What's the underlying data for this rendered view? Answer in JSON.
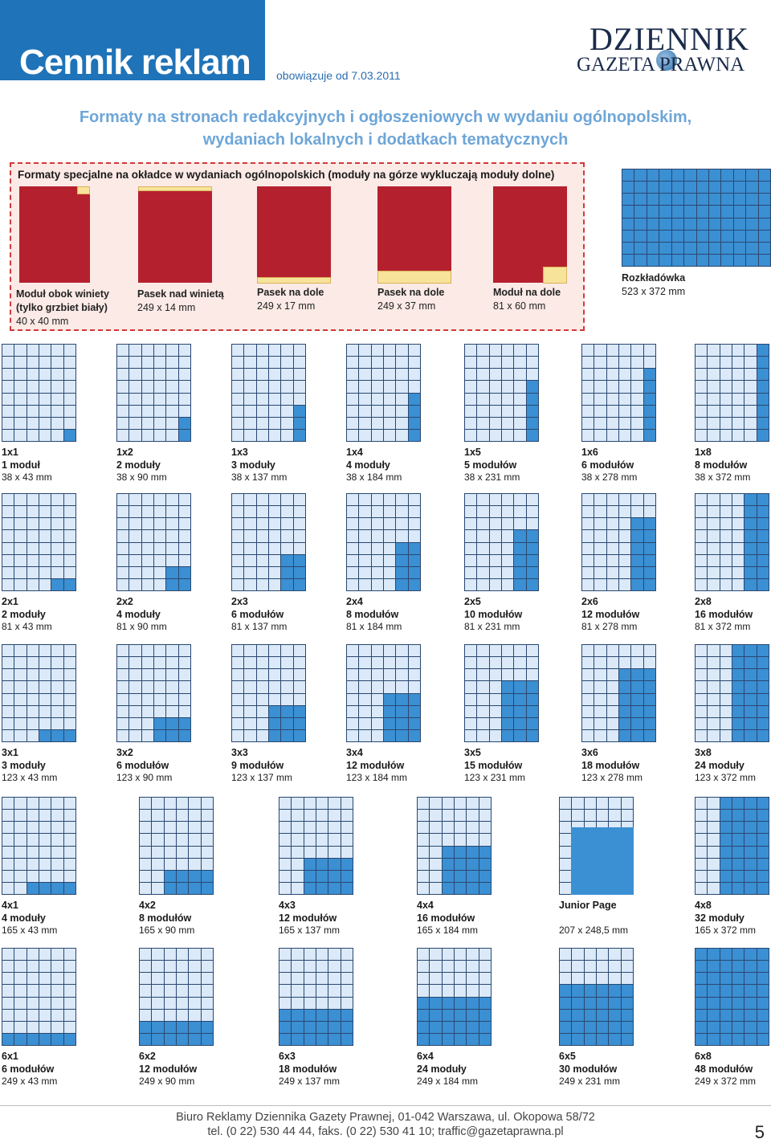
{
  "header": {
    "title": "Cennik reklam",
    "valid_from": "obowiązuje od 7.03.2011",
    "logo_line1": "DZIENNIK",
    "logo_line2": "GAZETA PRAWNA"
  },
  "subtitle": {
    "line1": "Formaty na stronach redakcyjnych i ogłoszeniowych w wydaniu ogólnopolskim,",
    "line2": "wydaniach lokalnych i dodatkach tematycznych"
  },
  "special": {
    "label": "Formaty specjalne na okładce w wydaniach ogólnopolskich (moduły na górze wykluczają moduły dolne)",
    "items": [
      {
        "name": "Moduł obok winiety",
        "name2": "(tylko grzbiet biały)",
        "dims": "40 x 40 mm"
      },
      {
        "name": "Pasek nad winietą",
        "name2": "",
        "dims": "249 x 14 mm"
      },
      {
        "name": "Pasek na dole",
        "name2": "",
        "dims": "249 x 17 mm"
      },
      {
        "name": "Pasek na dole",
        "name2": "",
        "dims": "249 x 37 mm"
      },
      {
        "name": "Moduł na dole",
        "name2": "",
        "dims": "81 x 60 mm"
      }
    ],
    "spread": {
      "name": "Rozkładówka",
      "dims": "523 x 372 mm"
    }
  },
  "colors": {
    "accent": "#1f73b8",
    "module_fill": "#3b8fd3",
    "module_empty": "#dbe9f8",
    "special_red": "#b5202e",
    "special_yellow": "#f7e39a"
  },
  "rows": [
    {
      "items": [
        {
          "code": "1x1",
          "count": "1 moduł",
          "dims": "38 x 43 mm",
          "w": 1,
          "h": 1
        },
        {
          "code": "1x2",
          "count": "2 moduły",
          "dims": "38 x 90 mm",
          "w": 1,
          "h": 2
        },
        {
          "code": "1x3",
          "count": "3 moduły",
          "dims": "38 x 137 mm",
          "w": 1,
          "h": 3
        },
        {
          "code": "1x4",
          "count": "4 moduły",
          "dims": "38 x 184 mm",
          "w": 1,
          "h": 4
        },
        {
          "code": "1x5",
          "count": "5 modułów",
          "dims": "38 x 231 mm",
          "w": 1,
          "h": 5
        },
        {
          "code": "1x6",
          "count": "6 modułów",
          "dims": "38 x 278 mm",
          "w": 1,
          "h": 6
        },
        {
          "code": "1x8",
          "count": "8 modułów",
          "dims": "38 x 372 mm",
          "w": 1,
          "h": 8
        }
      ]
    },
    {
      "items": [
        {
          "code": "2x1",
          "count": "2 moduły",
          "dims": "81 x 43 mm",
          "w": 2,
          "h": 1
        },
        {
          "code": "2x2",
          "count": "4 moduły",
          "dims": "81 x 90 mm",
          "w": 2,
          "h": 2
        },
        {
          "code": "2x3",
          "count": "6 modułów",
          "dims": "81 x 137 mm",
          "w": 2,
          "h": 3
        },
        {
          "code": "2x4",
          "count": "8 modułów",
          "dims": "81 x 184 mm",
          "w": 2,
          "h": 4
        },
        {
          "code": "2x5",
          "count": "10 modułów",
          "dims": "81 x 231 mm",
          "w": 2,
          "h": 5
        },
        {
          "code": "2x6",
          "count": "12 modułów",
          "dims": "81 x 278 mm",
          "w": 2,
          "h": 6
        },
        {
          "code": "2x8",
          "count": "16 modułów",
          "dims": "81 x 372 mm",
          "w": 2,
          "h": 8
        }
      ]
    },
    {
      "items": [
        {
          "code": "3x1",
          "count": "3 moduły",
          "dims": "123 x 43 mm",
          "w": 3,
          "h": 1
        },
        {
          "code": "3x2",
          "count": "6 modułów",
          "dims": "123 x 90 mm",
          "w": 3,
          "h": 2
        },
        {
          "code": "3x3",
          "count": "9 modułów",
          "dims": "123 x 137 mm",
          "w": 3,
          "h": 3
        },
        {
          "code": "3x4",
          "count": "12 modułów",
          "dims": "123 x 184 mm",
          "w": 3,
          "h": 4
        },
        {
          "code": "3x5",
          "count": "15 modułów",
          "dims": "123 x 231 mm",
          "w": 3,
          "h": 5
        },
        {
          "code": "3x6",
          "count": "18 modułów",
          "dims": "123 x 278 mm",
          "w": 3,
          "h": 6
        },
        {
          "code": "3x8",
          "count": "24 moduły",
          "dims": "123 x 372 mm",
          "w": 3,
          "h": 8
        }
      ]
    },
    {
      "items": [
        {
          "code": "4x1",
          "count": "4 moduły",
          "dims": "165 x 43 mm",
          "w": 4,
          "h": 1
        },
        {
          "code": "4x2",
          "count": "8 modułów",
          "dims": "165 x 90 mm",
          "w": 4,
          "h": 2
        },
        {
          "code": "4x3",
          "count": "12 modułów",
          "dims": "165 x 137 mm",
          "w": 4,
          "h": 3
        },
        {
          "code": "4x4",
          "count": "16 modułów",
          "dims": "165 x 184 mm",
          "w": 4,
          "h": 4
        },
        {
          "code": "Junior Page",
          "count": "",
          "dims": "207 x 248,5 mm",
          "w": 0,
          "h": 0
        },
        {
          "code": "4x8",
          "count": "32 moduły",
          "dims": "165 x 372 mm",
          "w": 4,
          "h": 8
        }
      ]
    },
    {
      "items": [
        {
          "code": "6x1",
          "count": "6 modułów",
          "dims": "249 x 43 mm",
          "w": 6,
          "h": 1
        },
        {
          "code": "6x2",
          "count": "12 modułów",
          "dims": "249 x 90 mm",
          "w": 6,
          "h": 2
        },
        {
          "code": "6x3",
          "count": "18 modułów",
          "dims": "249 x 137 mm",
          "w": 6,
          "h": 3
        },
        {
          "code": "6x4",
          "count": "24 moduły",
          "dims": "249 x 184 mm",
          "w": 6,
          "h": 4
        },
        {
          "code": "6x5",
          "count": "30 modułów",
          "dims": "249 x 231 mm",
          "w": 6,
          "h": 5
        },
        {
          "code": "6x8",
          "count": "48 modułów",
          "dims": "249 x 372 mm",
          "w": 6,
          "h": 8
        }
      ]
    }
  ],
  "footer": {
    "line1": "Biuro Reklamy Dziennika Gazety Prawnej, 01-042 Warszawa, ul. Okopowa 58/72",
    "line2": "tel. (0 22) 530 44 44, faks. (0 22) 530 41 10; traffic@gazetaprawna.pl",
    "page": "5"
  }
}
